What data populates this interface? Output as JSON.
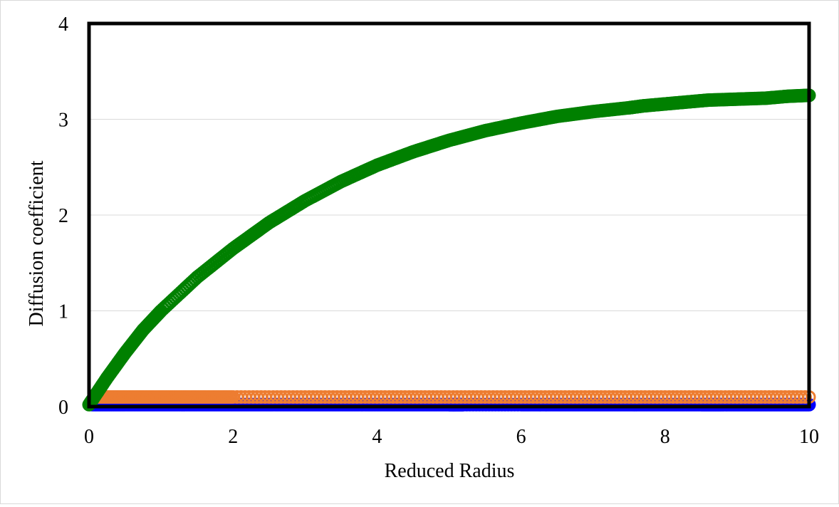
{
  "chart_data": {
    "type": "scatter",
    "title": "",
    "xlabel": "Reduced Radius",
    "ylabel": "Diffusion coefficient",
    "xlim": [
      0,
      10
    ],
    "ylim": [
      0,
      4
    ],
    "x_ticks": [
      "0",
      "2",
      "4",
      "6",
      "8",
      "10"
    ],
    "y_ticks": [
      "0",
      "1",
      "2",
      "3",
      "4"
    ],
    "grid": "horizontal",
    "legend": "none",
    "series": [
      {
        "color": "#0000ff",
        "marker": "circle",
        "x": [
          0.05,
          0.5,
          1.0,
          1.5,
          2.0,
          2.5,
          3.0,
          3.5,
          4.0,
          4.5,
          5.0,
          5.2,
          6.0,
          6.5,
          7.0,
          7.5,
          8.0,
          8.5,
          8.8,
          9.2,
          9.6,
          10.0
        ],
        "y": [
          0.02,
          0.02,
          0.02,
          0.02,
          0.02,
          0.02,
          0.02,
          0.02,
          0.02,
          0.02,
          0.02,
          0.02,
          0.02,
          0.02,
          0.02,
          0.02,
          0.02,
          0.02,
          0.02,
          0.02,
          0.02,
          0.02
        ]
      },
      {
        "color": "#ed7d31",
        "marker": "circle",
        "x": [
          0.1,
          0.5,
          1.0,
          1.5,
          2.0,
          3.0,
          4.0,
          5.0,
          6.0,
          7.0,
          8.0,
          9.0,
          10.0
        ],
        "y": [
          0.1,
          0.1,
          0.1,
          0.1,
          0.1,
          0.1,
          0.1,
          0.1,
          0.1,
          0.1,
          0.1,
          0.1,
          0.1
        ]
      },
      {
        "color": "#008000",
        "marker": "circle",
        "x": [
          0.0,
          0.25,
          0.5,
          0.75,
          1.0,
          1.5,
          2.0,
          2.5,
          3.0,
          3.5,
          4.0,
          4.5,
          5.0,
          5.5,
          6.0,
          6.5,
          7.0,
          7.5,
          7.7,
          8.0,
          8.3,
          8.6,
          9.0,
          9.4,
          9.7,
          10.0
        ],
        "y": [
          0.02,
          0.3,
          0.56,
          0.8,
          1.0,
          1.35,
          1.65,
          1.92,
          2.15,
          2.35,
          2.52,
          2.66,
          2.78,
          2.88,
          2.96,
          3.03,
          3.08,
          3.12,
          3.14,
          3.16,
          3.18,
          3.2,
          3.21,
          3.22,
          3.24,
          3.25
        ]
      }
    ]
  }
}
